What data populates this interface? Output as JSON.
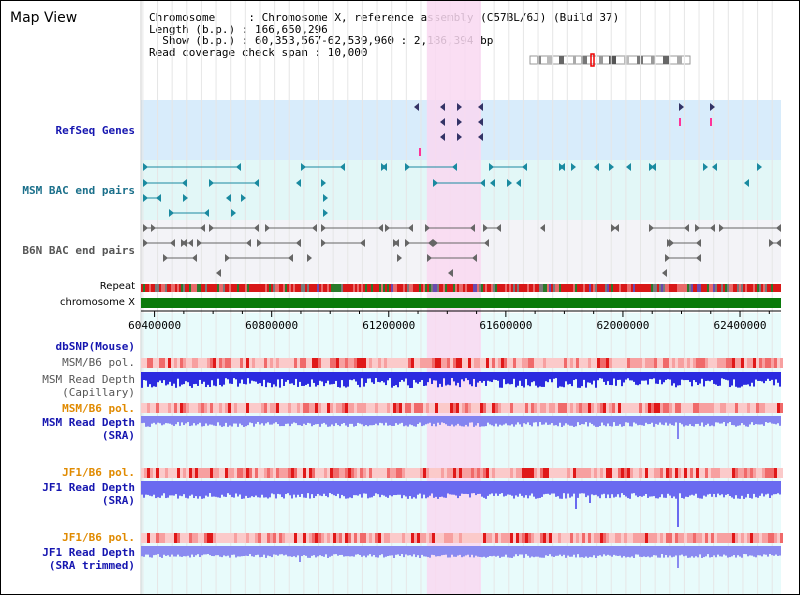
{
  "title": "Map View",
  "info": {
    "line1": "Chromosome     : Chromosome X, reference assembly (C57BL/6J) (Build 37)",
    "line2": "Length (b.p.) : 166,650,296",
    "line3": "  Show (b.p.) : 60,353,567-62,539,960 : 2,186,394 bp",
    "line4": "Read coverage check span : 10,000"
  },
  "tracks": {
    "refseq": "RefSeq Genes",
    "msm_bac": "MSM BAC end pairs",
    "b6n_bac": "B6N BAC end pairs",
    "repeat": "Repeat",
    "chromosome": "chromosome X",
    "dbsnp": "dbSNP(Mouse)",
    "msm_b6_pol_1": "MSM/B6 pol.",
    "msm_read_depth_cap_1": "MSM Read Depth",
    "msm_read_depth_cap_2": "(Capillary)",
    "msm_b6_pol_2": "MSM/B6 pol.",
    "msm_read_depth_sra_1": "MSM Read Depth",
    "msm_read_depth_sra_2": "(SRA)",
    "jf1_b6_pol_1": "JF1/B6 pol.",
    "jf1_read_depth_sra_1": "JF1 Read Depth",
    "jf1_read_depth_sra_2": "(SRA)",
    "jf1_b6_pol_2": "JF1/B6 pol.",
    "jf1_read_depth_trim_1": "JF1 Read Depth",
    "jf1_read_depth_trim_2": "(SRA trimmed)"
  },
  "axis": {
    "start": 60353567,
    "end": 62539960,
    "ticks": [
      "60400000",
      "60800000",
      "61200000",
      "61600000",
      "62000000",
      "62400000"
    ],
    "tick_values": [
      60400000,
      60800000,
      61200000,
      61600000,
      62000000,
      62400000
    ]
  },
  "highlight_region": {
    "start": 61330000,
    "end": 61515000
  },
  "colors": {
    "highlight": "#f9d8f1",
    "refseq_bg": "#d8ecfb",
    "msm_bg": "#e2f7f7",
    "b6n_bg": "#f3f3f7",
    "chrom_bar": "#0a7a0a",
    "label_blue": "#1515b0",
    "label_teal": "#1a6f8a",
    "label_orange": "#e08a00",
    "label_gray": "#444444"
  }
}
